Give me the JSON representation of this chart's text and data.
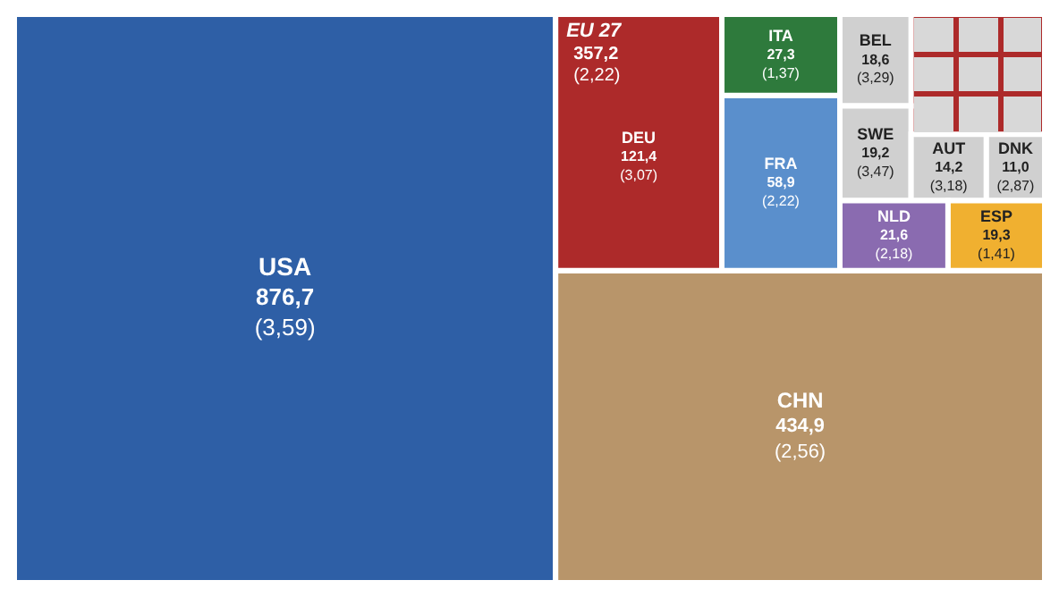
{
  "chart_data": {
    "type": "other",
    "categories": [
      "USA",
      "EU 27",
      "CHN",
      "DEU",
      "FRA",
      "ITA",
      "BEL",
      "SWE",
      "AUT",
      "DNK",
      "NLD",
      "ESP"
    ],
    "values": [
      876.7,
      357.2,
      434.9,
      121.4,
      58.9,
      27.3,
      18.6,
      19.2,
      14.2,
      11.0,
      21.6,
      19.3
    ],
    "value_labels": [
      "876,7\n(3,59)",
      "357,2\n(2,22)",
      "434,9\n(2,56)",
      "121,4\n(3,07)",
      "58,9\n(2,22)",
      "27,3\n(1,37)",
      "18,6\n(3,29)",
      "19,2\n(3,47)",
      "14,2\n(3,18)",
      "11,0\n(2,87)",
      "21,6\n(2,18)",
      "19,3\n(1,41)"
    ],
    "colors": [
      "#2e5fa6",
      "#ad2a2a",
      "#b8956a",
      "#ad2a2a",
      "#5a8fcc",
      "#2e7a3c",
      "#d0d0d0",
      "#d0d0d0",
      "#d0d0d0",
      "#d0d0d0",
      "#8a6bb0",
      "#f0b030"
    ]
  }
}
